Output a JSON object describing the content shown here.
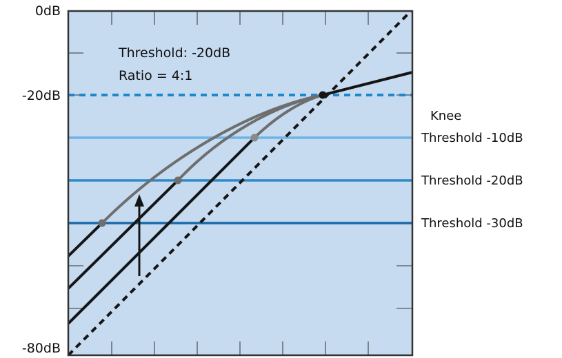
{
  "axis": {
    "top_label": "0dB",
    "mid_label": "-20dB",
    "bottom_label": "-80dB"
  },
  "annotation": {
    "threshold": "Threshold: -20dB",
    "ratio": "Ratio = 4:1"
  },
  "knee": {
    "title": "Knee",
    "labels": [
      "Threshold -10dB",
      "Threshold -20dB",
      "Threshold -30dB"
    ]
  },
  "colors": {
    "plot_bg": "#c6daf0",
    "border": "#333333",
    "threshold_dashed": "#1e88cc",
    "knee_10": "#6db3e6",
    "knee_20": "#2f88c8",
    "knee_30": "#1868a8",
    "curve_dark": "#151515",
    "curve_grey": "#6e6e6e"
  }
}
